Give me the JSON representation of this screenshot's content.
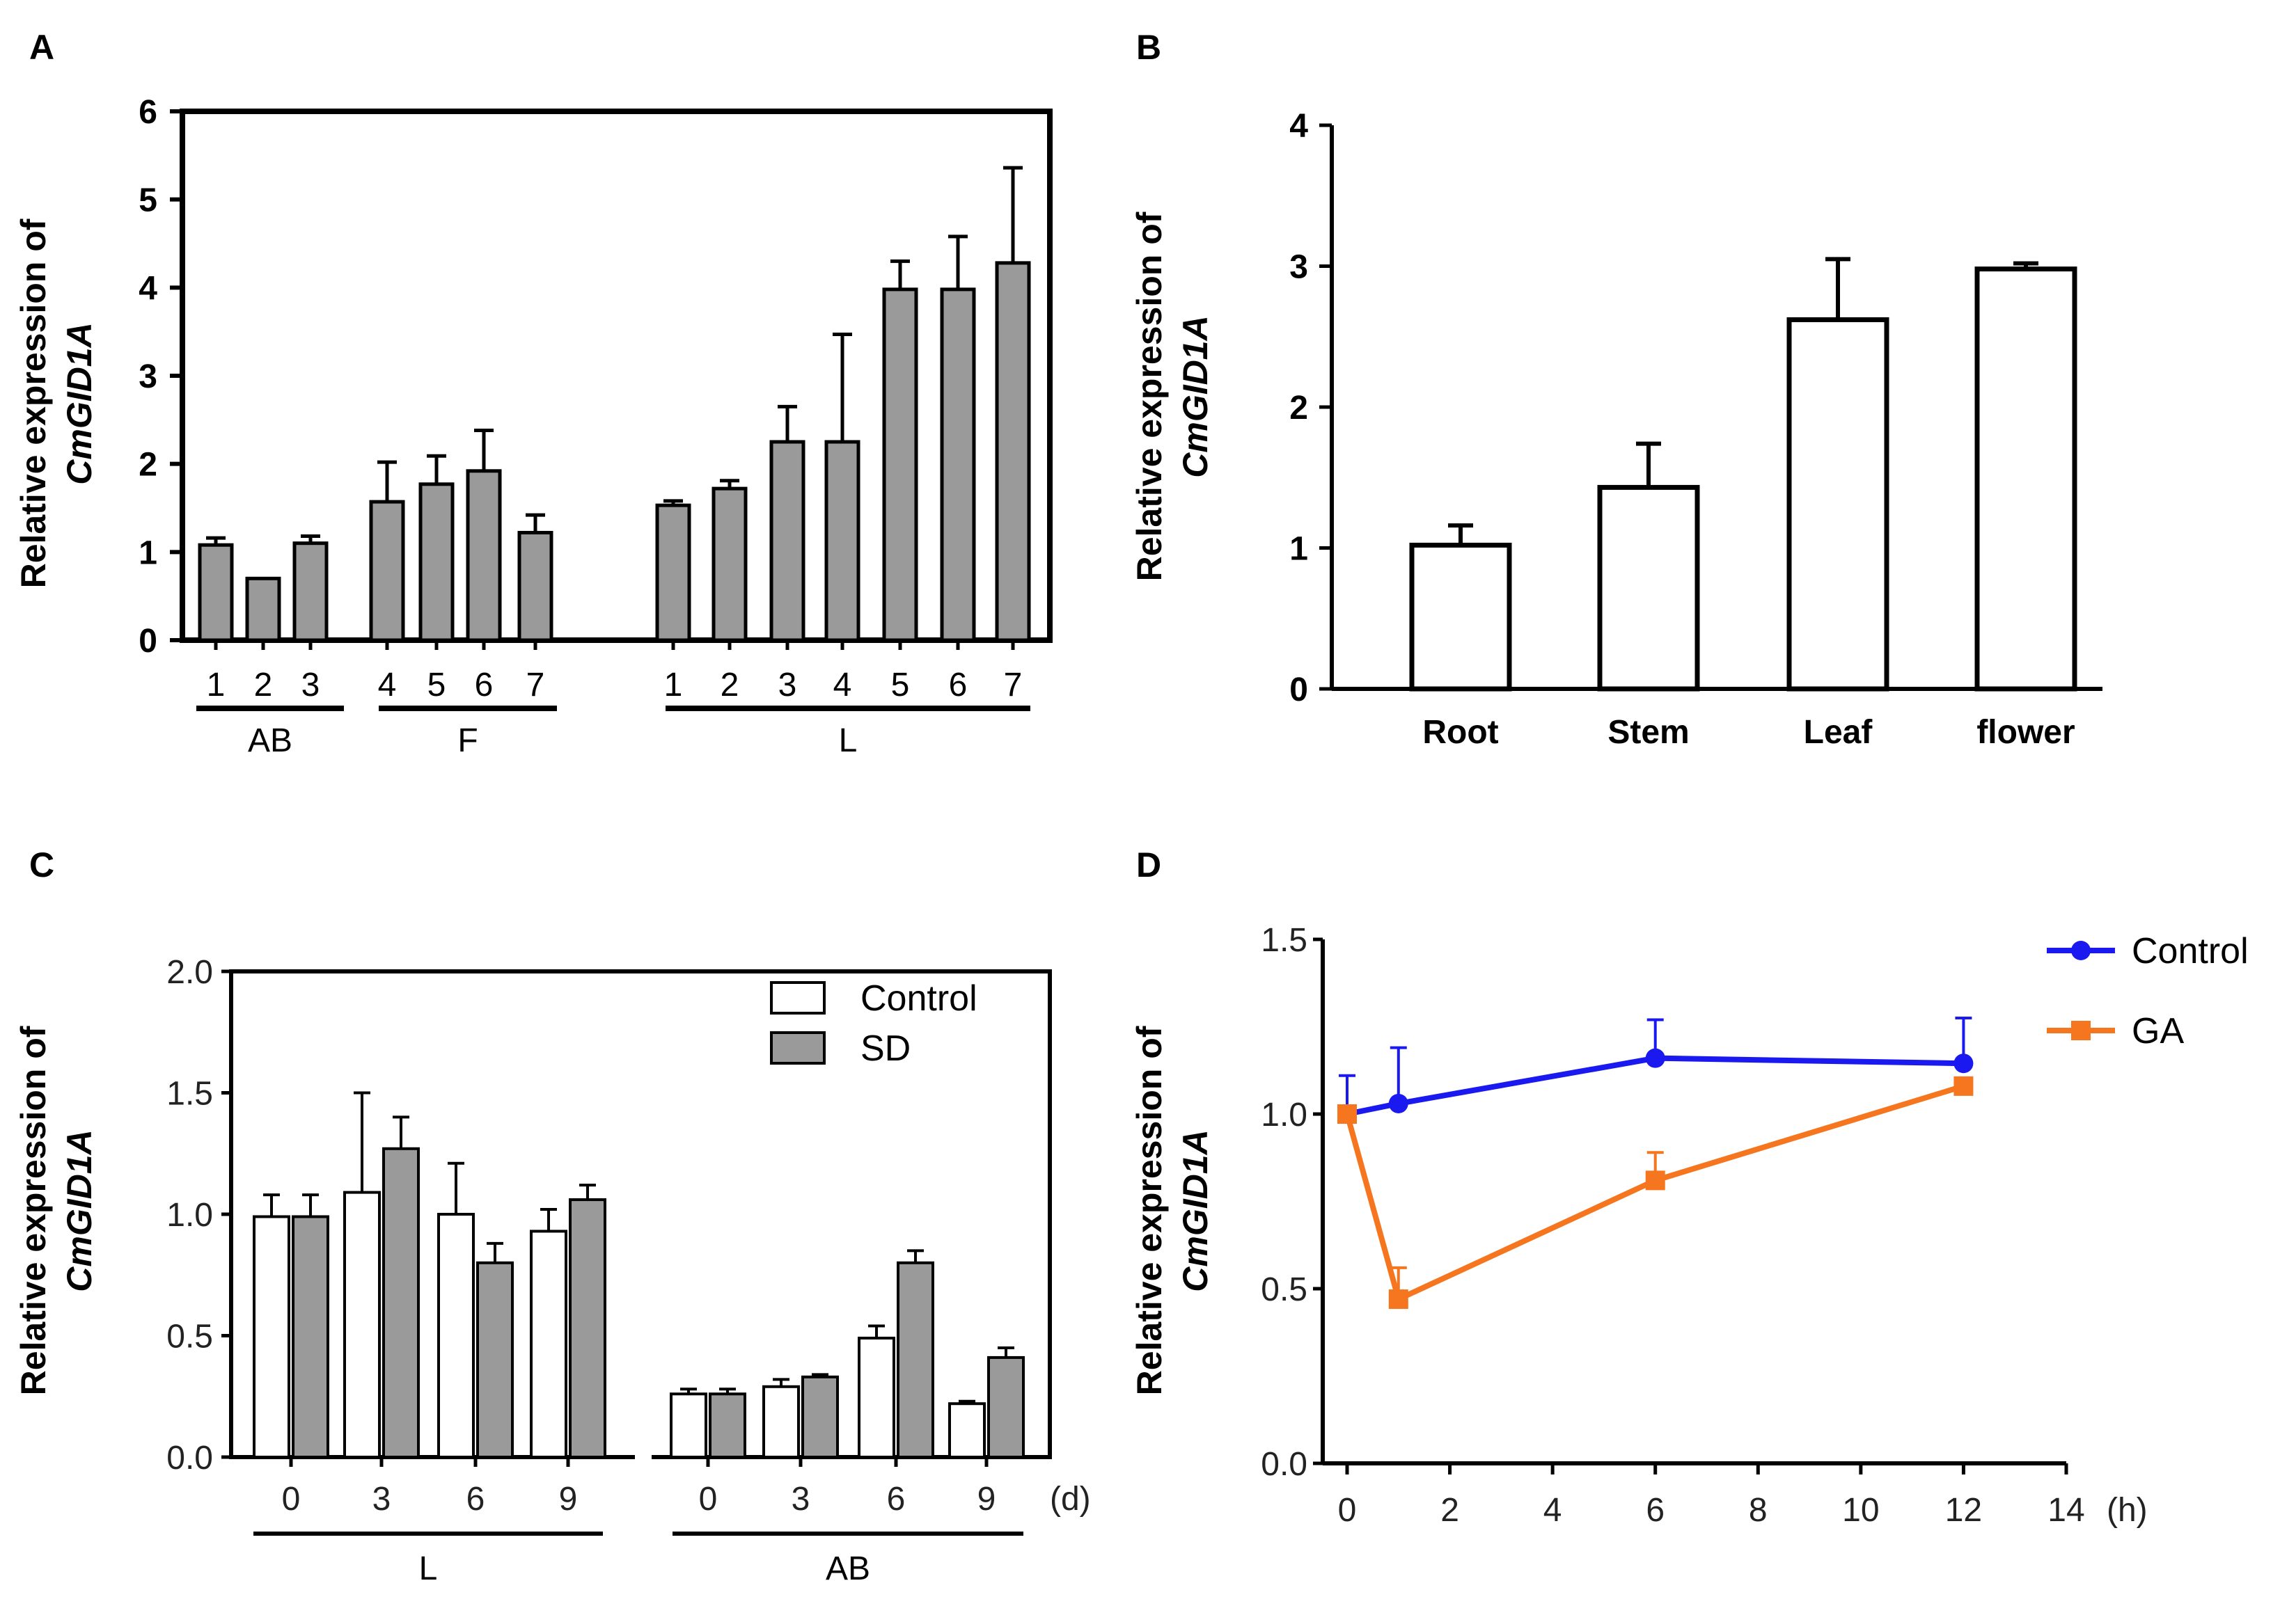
{
  "figure": {
    "colors": {
      "bar_gray": "#9a9a9a",
      "bar_white": "#ffffff",
      "axis": "#000000",
      "control_line": "#1a1af0",
      "ga_line": "#f5761e"
    }
  },
  "panels": {
    "A": {
      "letter": "A",
      "ylabel_line1": "Relative expression of",
      "ylabel_gene": "CmGID1A"
    },
    "B": {
      "letter": "B",
      "ylabel_line1": "Relative expression of",
      "ylabel_gene": "CmGID1A"
    },
    "C": {
      "letter": "C",
      "ylabel_line1": "Relative expression of",
      "ylabel_gene": "CmGID1A",
      "x_unit": "(d)"
    },
    "D": {
      "letter": "D",
      "ylabel_line1": "Relative expression of",
      "ylabel_gene": "CmGID1A",
      "x_unit": "(h)"
    }
  },
  "chart_data": [
    {
      "panel": "A",
      "type": "bar",
      "ylabel": "Relative expression of CmGID1A",
      "ylim": [
        0,
        6
      ],
      "yticks": [
        "0",
        "1",
        "2",
        "3",
        "4",
        "5",
        "6"
      ],
      "bar_color": "gray",
      "categories": [
        "1",
        "2",
        "3",
        "4",
        "5",
        "6",
        "7",
        "1",
        "2",
        "3",
        "4",
        "5",
        "6",
        "7"
      ],
      "groups": [
        {
          "label": "AB",
          "category_indices": [
            0,
            1,
            2
          ]
        },
        {
          "label": "F",
          "category_indices": [
            3,
            4,
            5,
            6
          ]
        },
        {
          "label": "L",
          "category_indices": [
            7,
            8,
            9,
            10,
            11,
            12,
            13
          ]
        }
      ],
      "values": [
        1.08,
        0.7,
        1.1,
        1.57,
        1.77,
        1.92,
        1.22,
        1.53,
        1.72,
        2.25,
        2.25,
        3.98,
        3.98,
        4.28
      ],
      "errors": [
        0.08,
        0.0,
        0.08,
        0.45,
        0.32,
        0.46,
        0.2,
        0.05,
        0.09,
        0.4,
        1.22,
        0.32,
        0.6,
        1.08
      ]
    },
    {
      "panel": "B",
      "type": "bar",
      "ylabel": "Relative expression of CmGID1A",
      "ylim": [
        0,
        4
      ],
      "yticks": [
        "0",
        "1",
        "2",
        "3",
        "4"
      ],
      "bar_color": "white",
      "categories": [
        "Root",
        "Stem",
        "Leaf",
        "flower"
      ],
      "values": [
        1.02,
        1.43,
        2.62,
        2.98
      ],
      "errors": [
        0.14,
        0.31,
        0.43,
        0.04
      ]
    },
    {
      "panel": "C",
      "type": "bar",
      "ylabel": "Relative expression of CmGID1A",
      "ylim": [
        0,
        2.0
      ],
      "yticks": [
        "0.0",
        "0.5",
        "1.0",
        "1.5",
        "2.0"
      ],
      "x_unit": "(d)",
      "categories": [
        "0",
        "3",
        "6",
        "9",
        "0",
        "3",
        "6",
        "9"
      ],
      "groups": [
        {
          "label": "L",
          "category_indices": [
            0,
            1,
            2,
            3
          ]
        },
        {
          "label": "AB",
          "category_indices": [
            4,
            5,
            6,
            7
          ]
        }
      ],
      "series": [
        {
          "name": "Control",
          "color": "white",
          "values": [
            0.99,
            1.09,
            1.0,
            0.93,
            0.26,
            0.29,
            0.49,
            0.22
          ],
          "errors": [
            0.09,
            0.41,
            0.21,
            0.09,
            0.02,
            0.03,
            0.05,
            0.01
          ]
        },
        {
          "name": "SD",
          "color": "gray",
          "values": [
            0.99,
            1.27,
            0.8,
            1.06,
            0.26,
            0.33,
            0.8,
            0.41
          ],
          "errors": [
            0.09,
            0.13,
            0.08,
            0.06,
            0.02,
            0.01,
            0.05,
            0.04
          ]
        }
      ],
      "legend": "top-right"
    },
    {
      "panel": "D",
      "type": "line",
      "ylabel": "Relative expression of CmGID1A",
      "ylim": [
        0,
        1.5
      ],
      "xlim": [
        0,
        14
      ],
      "yticks": [
        "0.0",
        "0.5",
        "1.0",
        "1.5"
      ],
      "xticks": [
        "0",
        "2",
        "4",
        "6",
        "8",
        "10",
        "12",
        "14"
      ],
      "x_unit": "(h)",
      "x": [
        0,
        1,
        6,
        12
      ],
      "series": [
        {
          "name": "Control",
          "color": "#1a1af0",
          "marker": "circle",
          "values": [
            1.0,
            1.03,
            1.16,
            1.145
          ],
          "errors": [
            0.11,
            0.16,
            0.11,
            0.13
          ]
        },
        {
          "name": "GA",
          "color": "#f5761e",
          "marker": "square",
          "values": [
            1.0,
            0.47,
            0.81,
            1.08
          ],
          "errors": [
            0.02,
            0.09,
            0.08,
            0.0
          ]
        }
      ],
      "legend": "top-right"
    }
  ]
}
